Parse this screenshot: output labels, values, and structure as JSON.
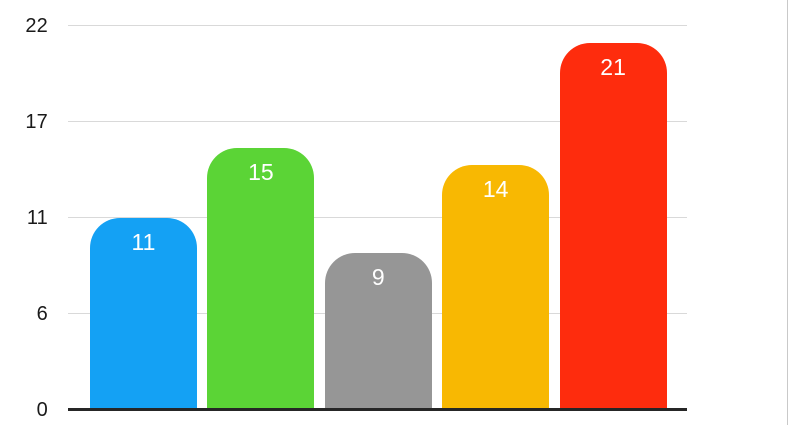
{
  "chart_data": {
    "type": "bar",
    "title": "",
    "values": [
      11,
      15,
      9,
      14,
      21
    ],
    "bar_labels": [
      "11",
      "15",
      "9",
      "14",
      "21"
    ],
    "bar_colors": [
      "#14A1F4",
      "#5BD436",
      "#969696",
      "#F8B802",
      "#FE2C0D"
    ],
    "y_axis": {
      "tick_labels": [
        "22",
        "17",
        "11",
        "6",
        "0"
      ],
      "ticks": [
        {
          "label": "22",
          "value": 22
        },
        {
          "label": "17",
          "value": 16.5
        },
        {
          "label": "11",
          "value": 11
        },
        {
          "label": "6",
          "value": 5.5
        },
        {
          "label": "0",
          "value": 0
        }
      ],
      "ylim": [
        0,
        22
      ]
    },
    "grid": true,
    "legend": false,
    "colors": {
      "gridline": "#D9D9D9",
      "axis_line": "#262626",
      "tick_text": "#1A1A1A",
      "bar_label_text": "#FFFFFF",
      "background": "#FFFFFF"
    }
  }
}
